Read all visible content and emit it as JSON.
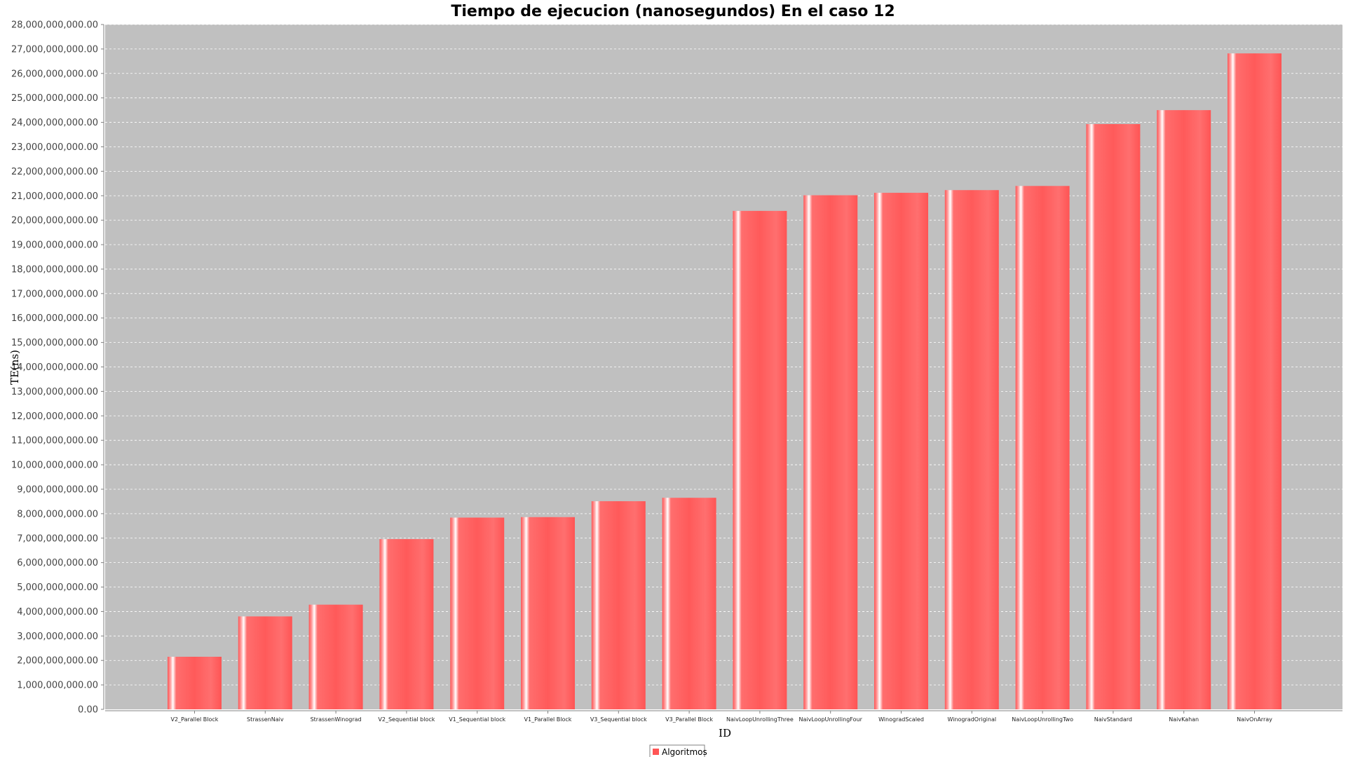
{
  "chart_data": {
    "type": "bar",
    "title": "Tiempo de ejecucion (nanosegundos) En el caso 12",
    "xlabel": "ID",
    "ylabel": "TE(ns)",
    "ylim": [
      0,
      28000000000
    ],
    "ytick_step": 1000000000,
    "grid": true,
    "legend_position": "bottom-center",
    "colors": {
      "bar": "#ff5555",
      "plot_background": "#c0c0c0",
      "grid": "#ffffff",
      "page_background": "#ffffff"
    },
    "categories": [
      "V2_Parallel Block",
      "StrassenNaiv",
      "StrassenWinograd",
      "V2_Sequential block",
      "V1_Sequential block",
      "V1_Parallel Block",
      "V3_Sequential block",
      "V3_Parallel Block",
      "NaivLoopUnrollingThree",
      "NaivLoopUnrollingFour",
      "WinogradScaled",
      "WinogradOriginal",
      "NaivLoopUnrollingTwo",
      "NaivStandard",
      "NaivKahan",
      "NaivOnArray"
    ],
    "series": [
      {
        "name": "Algoritmos",
        "values": [
          2150000000,
          3800000000,
          4280000000,
          6960000000,
          7840000000,
          7860000000,
          8510000000,
          8650000000,
          20380000000,
          21020000000,
          21120000000,
          21230000000,
          21400000000,
          23930000000,
          24500000000,
          26820000000
        ]
      }
    ]
  }
}
